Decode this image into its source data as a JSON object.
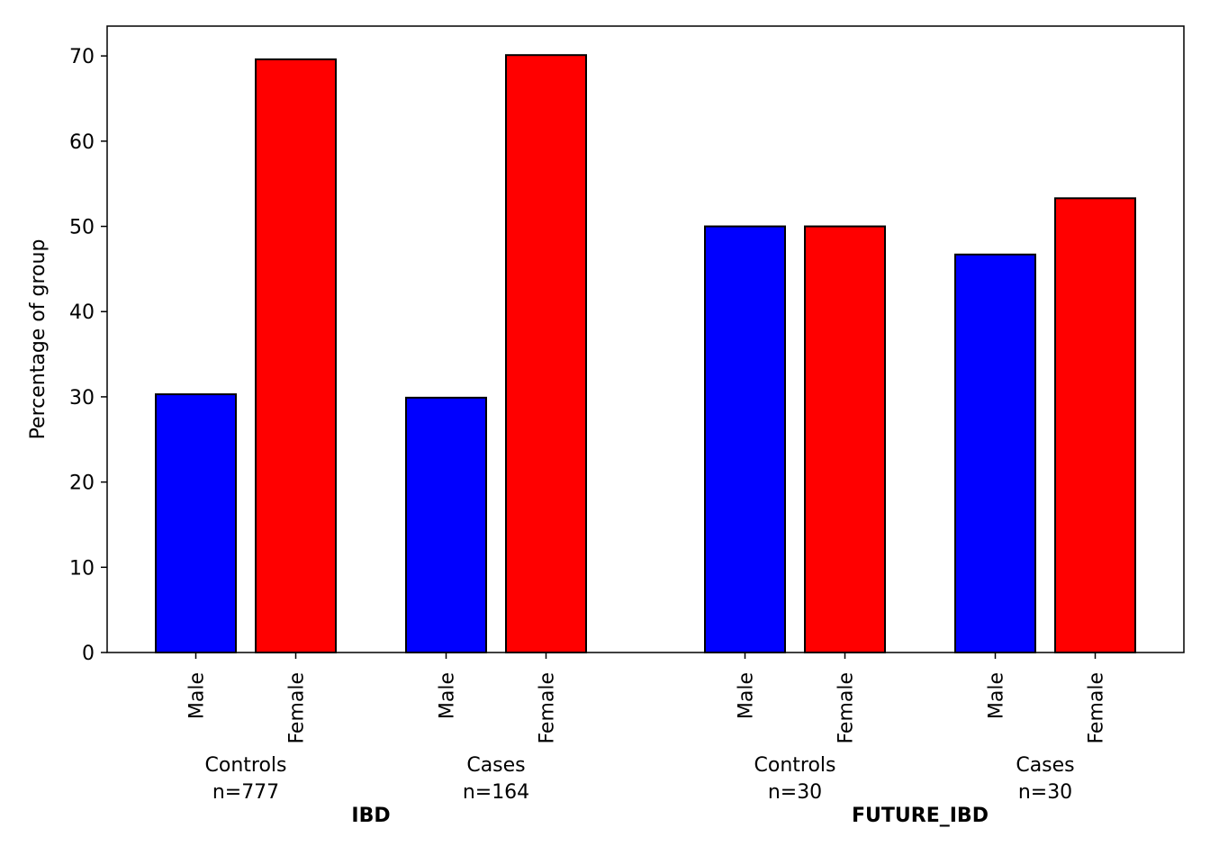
{
  "chart_data": {
    "type": "bar",
    "ylabel": "Percentage of group",
    "ylim": [
      0,
      73.5
    ],
    "yticks": [
      0,
      10,
      20,
      30,
      40,
      50,
      60,
      70
    ],
    "grid": false,
    "legend": "none",
    "colors": {
      "Male": "#0000ff",
      "Female": "#ff0000",
      "edge": "#000000"
    },
    "super_groups": [
      {
        "label": "IBD",
        "groups": [
          {
            "label": "Controls",
            "n": "n=777",
            "bars": [
              {
                "category": "Male",
                "value": 30.3
              },
              {
                "category": "Female",
                "value": 69.6
              }
            ]
          },
          {
            "label": "Cases",
            "n": "n=164",
            "bars": [
              {
                "category": "Male",
                "value": 29.9
              },
              {
                "category": "Female",
                "value": 70.1
              }
            ]
          }
        ]
      },
      {
        "label": "FUTURE_IBD",
        "groups": [
          {
            "label": "Controls",
            "n": "n=30",
            "bars": [
              {
                "category": "Male",
                "value": 50.0
              },
              {
                "category": "Female",
                "value": 50.0
              }
            ]
          },
          {
            "label": "Cases",
            "n": "n=30",
            "bars": [
              {
                "category": "Male",
                "value": 46.7
              },
              {
                "category": "Female",
                "value": 53.3
              }
            ]
          }
        ]
      }
    ]
  }
}
